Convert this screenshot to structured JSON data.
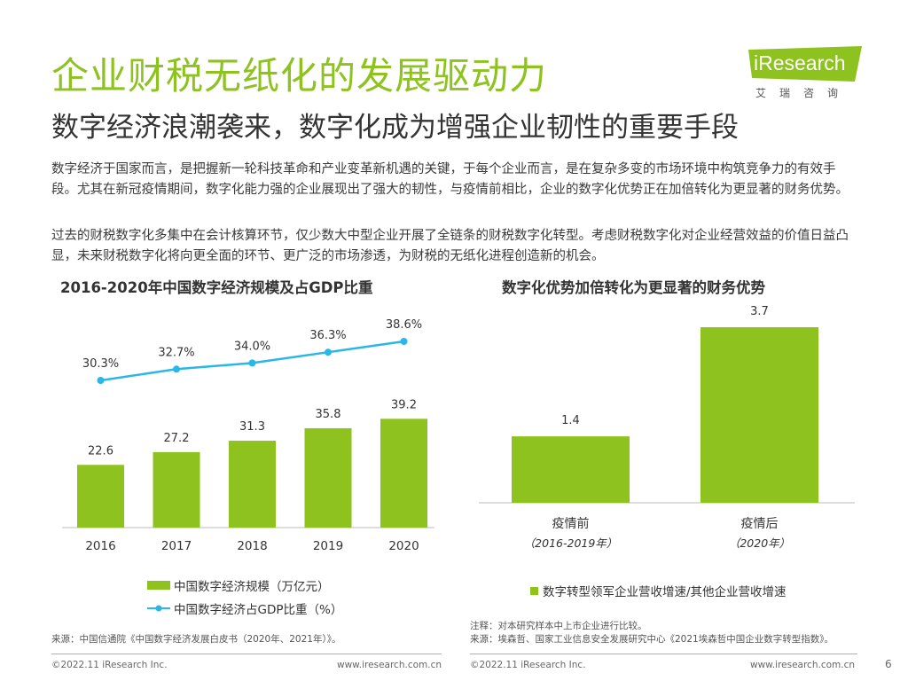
{
  "header": {
    "title": "企业财税无纸化的发展驱动力",
    "subtitle": "数字经济浪潮袭来，数字化成为增强企业韧性的重要手段",
    "logo_text": "iResearch",
    "logo_cn": "艾瑞咨询"
  },
  "body": {
    "para1": "数字经济于国家而言，是把握新一轮科技革命和产业变革新机遇的关键，于每个企业而言，是在复杂多变的市场环境中构筑竞争力的有效手段。尤其在新冠疫情期间，数字化能力强的企业展现出了强大的韧性，与疫情前相比，企业的数字化优势正在加倍转化为更显著的财务优势。",
    "para2": "过去的财税数字化多集中在会计核算环节，仅少数大中型企业开展了全链条的财税数字化转型。考虑财税数字化对企业经营效益的价值日益凸显，未来财税数字化将向更全面的环节、更广泛的市场渗透，为财税的无纸化进程创造新的机会。"
  },
  "chart_data": [
    {
      "type": "bar",
      "title": "2016-2020年中国数字经济规模及占GDP比重",
      "categories": [
        "2016",
        "2017",
        "2018",
        "2019",
        "2020"
      ],
      "series": [
        {
          "name": "中国数字经济规模（万亿元）",
          "values": [
            22.6,
            27.2,
            31.3,
            35.8,
            39.2
          ],
          "labels": [
            "22.6",
            "27.2",
            "31.3",
            "35.8",
            "39.2"
          ],
          "color": "#8DC21F",
          "type": "bar"
        },
        {
          "name": "中国数字经济占GDP比重（%）",
          "values": [
            30.3,
            32.7,
            34.0,
            36.3,
            38.6
          ],
          "labels": [
            "30.3%",
            "32.7%",
            "34.0%",
            "36.3%",
            "38.6%"
          ],
          "color": "#29B6E8",
          "type": "line"
        }
      ],
      "legend": "bottom",
      "grid": false
    },
    {
      "type": "bar",
      "title": "数字化优势加倍转化为更显著的财务优势",
      "categories": [
        "疫情前",
        "疫情后"
      ],
      "category_notes": [
        "（2016-2019年）",
        "（2020年）"
      ],
      "series": [
        {
          "name": "数字转型领军企业营收增速/其他企业营收增速",
          "values": [
            1.4,
            3.7
          ],
          "labels": [
            "1.4",
            "3.7"
          ],
          "color": "#8DC21F"
        }
      ],
      "legend": "bottom",
      "grid": false
    }
  ],
  "footer": {
    "source_left": "来源：中国信通院《中国数字经济发展白皮书（2020年、2021年）》。",
    "note_right": "注释：对本研究样本中上市企业进行比较。",
    "source_right": "来源：埃森哲、国家工业信息安全发展研究中心《2021埃森哲中国企业数字转型指数》。",
    "copyright_left": "©2022.11 iResearch Inc.",
    "url_left": "www.iresearch.com.cn",
    "copyright_right": "©2022.11 iResearch Inc.",
    "url_right": "www.iresearch.com.cn",
    "page_number": "6"
  },
  "colors": {
    "accent": "#8DC21F",
    "line": "#29B6E8",
    "text": "#333333"
  }
}
